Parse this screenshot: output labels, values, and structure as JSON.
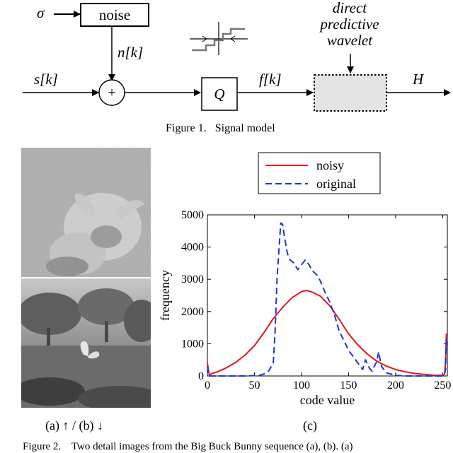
{
  "figure1": {
    "sigma": "σ",
    "noise_label": "noise",
    "noise_signal": "n[k]",
    "input_signal": "s[k]",
    "sum_symbol": "+",
    "quantizer_label": "Q",
    "quantized_signal": "f[k]",
    "methods": [
      "direct",
      "predictive",
      "wavelet"
    ],
    "output_label": "H",
    "caption": "Figure 1.   Signal model"
  },
  "figure2": {
    "subcaption_ab": "(a) ↑ / (b) ↓",
    "subcaption_c": "(c)",
    "caption": "Figure 2.    Two detail images from the Big Buck Bunny sequence (a), (b). (a)"
  },
  "chart_data": {
    "type": "line",
    "xlabel": "code value",
    "ylabel": "frequency",
    "xlim": [
      0,
      255
    ],
    "ylim": [
      0,
      5000
    ],
    "xticks": [
      0,
      50,
      100,
      150,
      200,
      250
    ],
    "yticks": [
      0,
      1000,
      2000,
      3000,
      4000,
      5000
    ],
    "legend_position": "top",
    "series": [
      {
        "name": "noisy",
        "color": "#e8141c",
        "style": "solid",
        "x": [
          0,
          2,
          5,
          10,
          20,
          30,
          40,
          50,
          60,
          70,
          80,
          90,
          100,
          105,
          110,
          120,
          130,
          140,
          150,
          160,
          170,
          180,
          190,
          200,
          210,
          220,
          230,
          240,
          250,
          252,
          253,
          254,
          255
        ],
        "y": [
          400,
          30,
          80,
          120,
          250,
          420,
          650,
          940,
          1340,
          1780,
          2130,
          2430,
          2620,
          2650,
          2620,
          2480,
          2180,
          1760,
          1310,
          960,
          680,
          460,
          310,
          200,
          130,
          80,
          50,
          25,
          20,
          60,
          400,
          1300,
          1000
        ]
      },
      {
        "name": "original",
        "color": "#1f35d8",
        "style": "dashed",
        "x": [
          0,
          2,
          10,
          20,
          30,
          40,
          50,
          55,
          60,
          65,
          70,
          72,
          74,
          76,
          78,
          80,
          82,
          85,
          88,
          92,
          96,
          100,
          104,
          108,
          112,
          116,
          120,
          125,
          130,
          135,
          140,
          145,
          150,
          155,
          160,
          165,
          168,
          172,
          175,
          180,
          182,
          185,
          190,
          200,
          210,
          220,
          230,
          240,
          250,
          252,
          253,
          254,
          255
        ],
        "y": [
          300,
          0,
          0,
          0,
          0,
          0,
          10,
          20,
          60,
          150,
          400,
          1400,
          3000,
          3900,
          4750,
          4700,
          4300,
          3800,
          3600,
          3500,
          3300,
          3450,
          3600,
          3450,
          3250,
          3150,
          2950,
          2600,
          2300,
          1900,
          1400,
          1100,
          800,
          600,
          400,
          200,
          500,
          250,
          150,
          450,
          750,
          300,
          100,
          20,
          0,
          0,
          0,
          0,
          0,
          50,
          200,
          1200,
          900
        ]
      }
    ]
  }
}
